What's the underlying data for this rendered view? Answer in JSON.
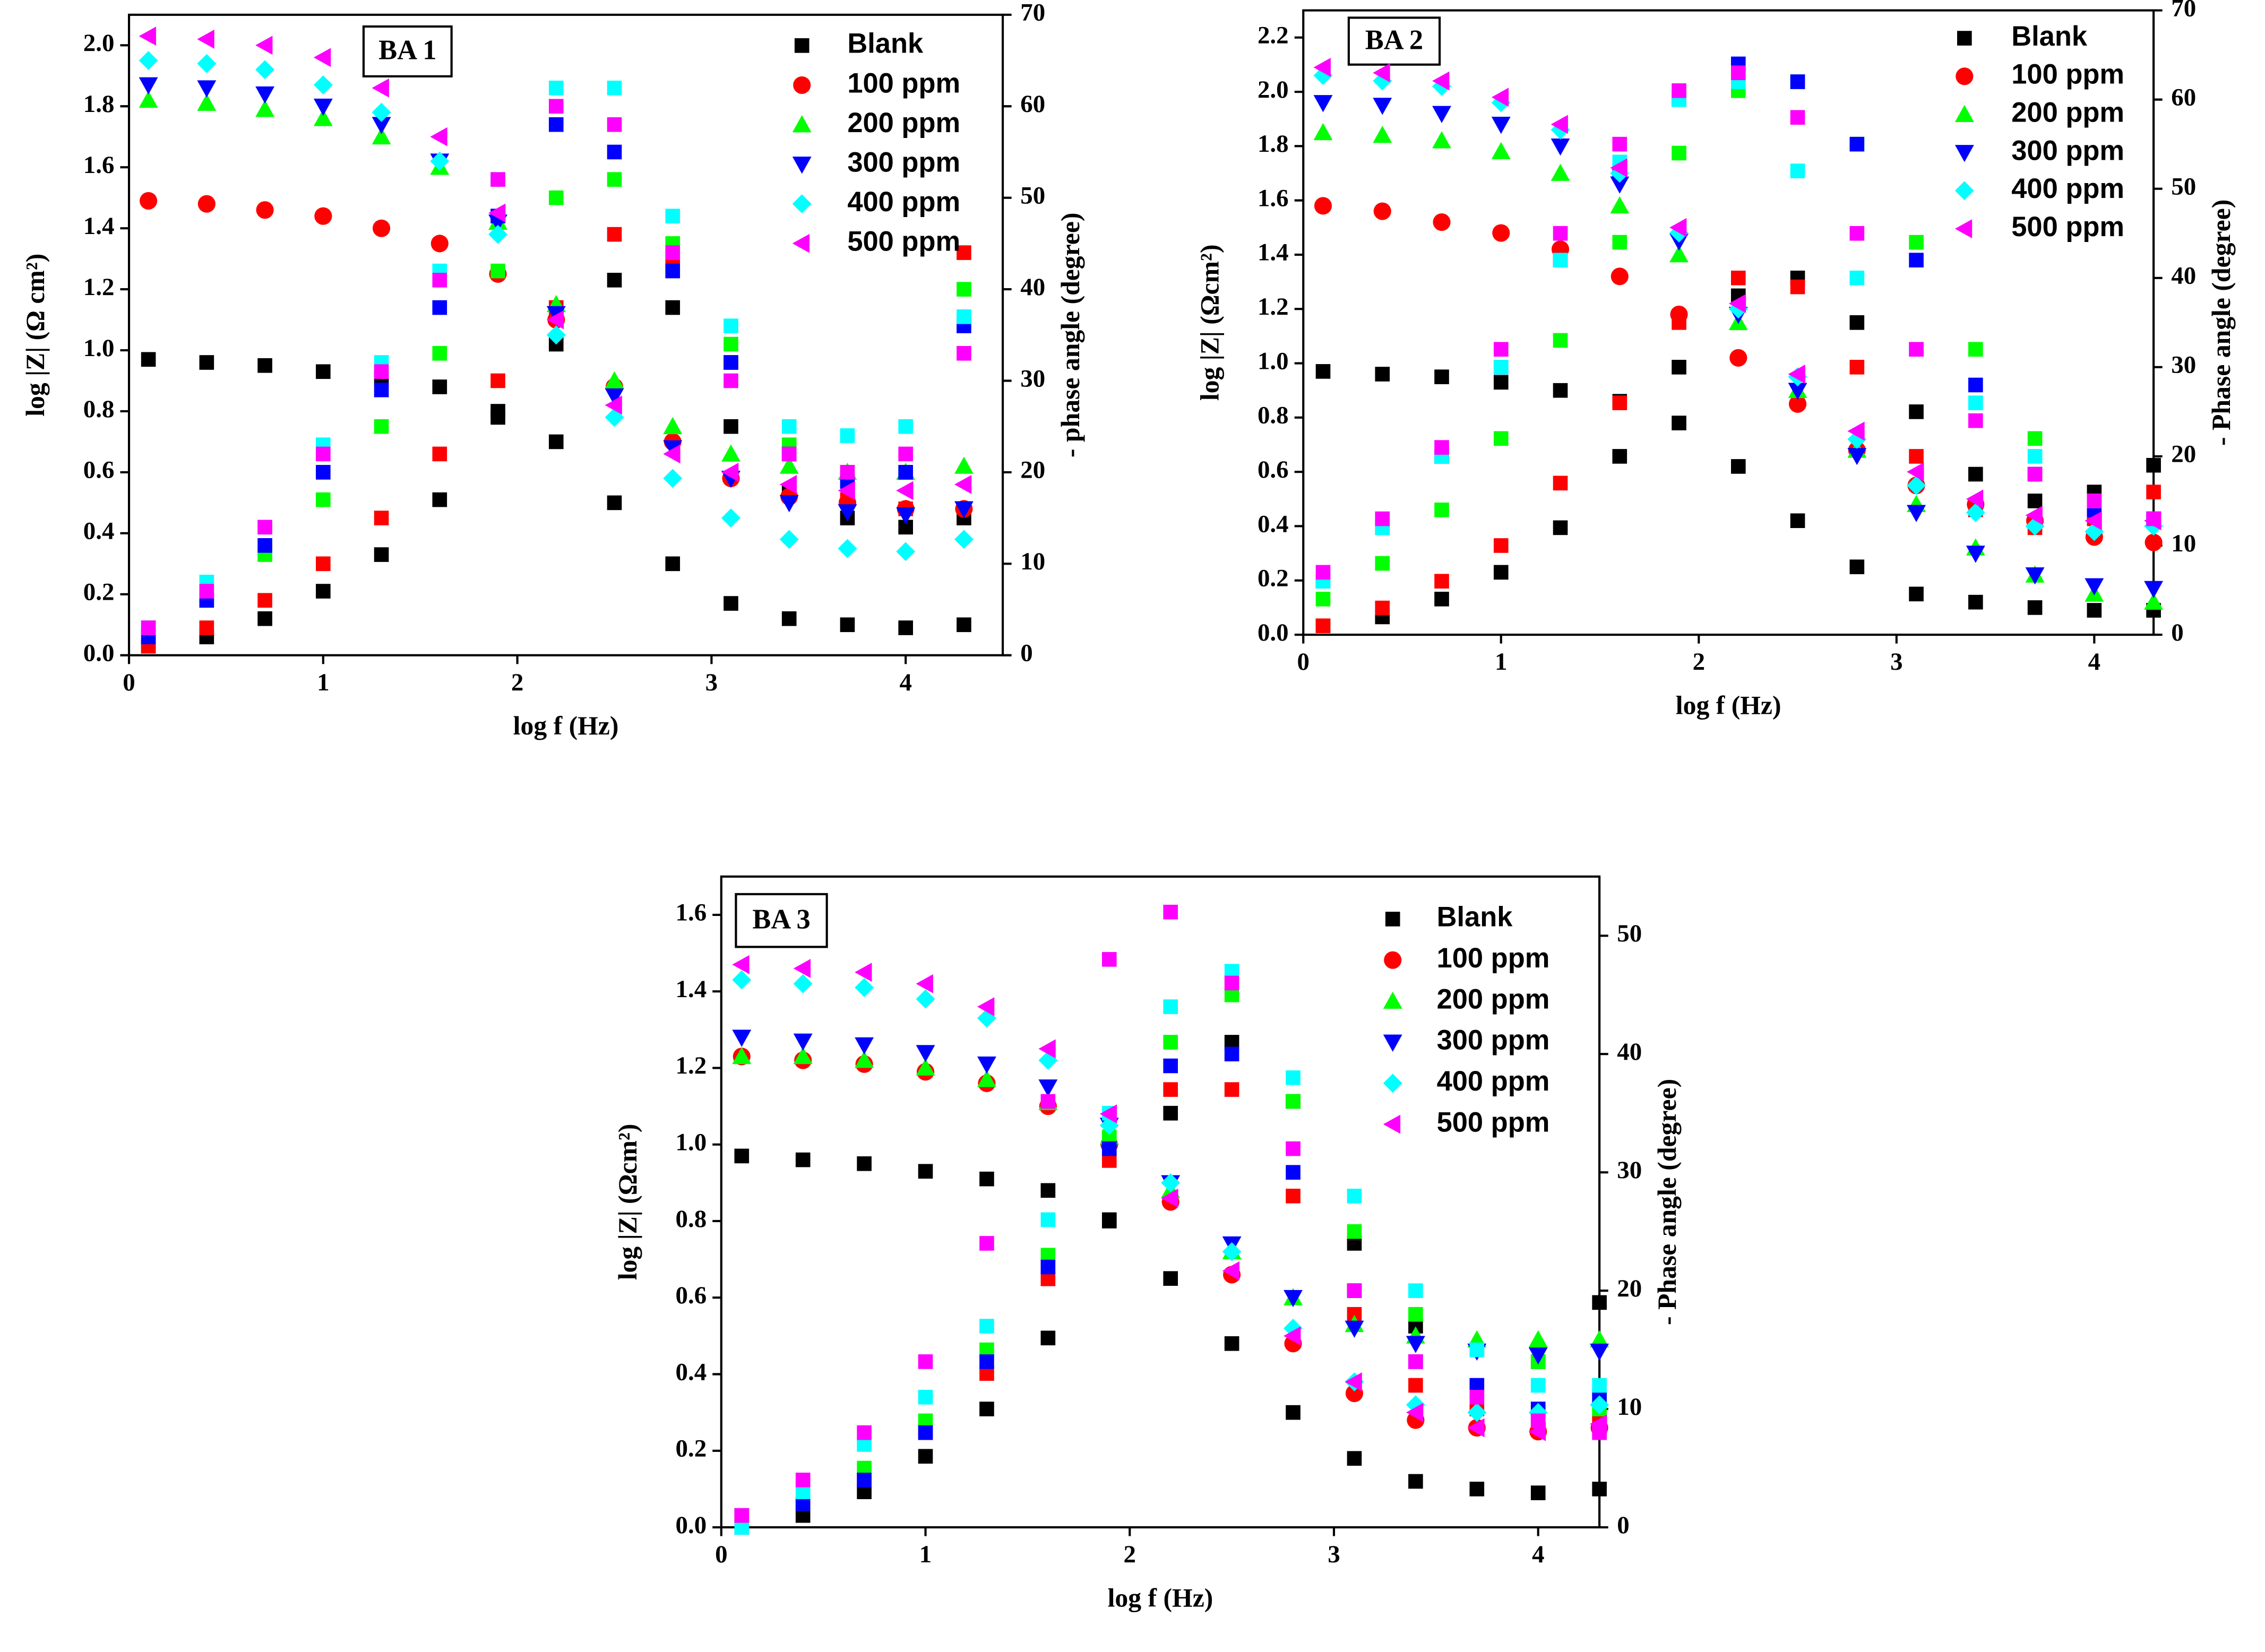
{
  "chart_data": [
    {
      "type": "scatter",
      "title": "BA 1",
      "xlabel": "log f (Hz)",
      "ylabel": "log |Z| (Ω cm²)",
      "y2label": "- phase angle (degree)",
      "xlim": [
        0,
        4.5
      ],
      "xticks": [
        0,
        1,
        2,
        3,
        4
      ],
      "ylim": [
        0,
        2.1
      ],
      "yticks": [
        {
          "value": 0,
          "label": "0.0"
        },
        0.2,
        0.4,
        0.6,
        0.8,
        {
          "value": 1,
          "label": "1.0"
        },
        1.2,
        1.4,
        1.6,
        1.8,
        {
          "value": 2,
          "label": "2.0"
        }
      ],
      "y2lim": [
        0,
        70
      ],
      "y2ticks": [
        0,
        10,
        20,
        30,
        40,
        50,
        60,
        70
      ],
      "x": [
        0.1,
        0.4,
        0.7,
        1.0,
        1.3,
        1.6,
        1.9,
        2.2,
        2.5,
        2.8,
        3.1,
        3.4,
        3.7,
        4.0,
        4.3
      ],
      "series": [
        {
          "name": "Blank",
          "color": "#000000",
          "marker": "square",
          "values": [
            0.97,
            0.96,
            0.95,
            0.93,
            0.91,
            0.88,
            0.8,
            0.7,
            0.5,
            0.3,
            0.17,
            0.12,
            0.1,
            0.09,
            0.1
          ],
          "phase": [
            1,
            2,
            4,
            7,
            11,
            17,
            26,
            34,
            41,
            38,
            25,
            18,
            15,
            14,
            15
          ]
        },
        {
          "name": "100 ppm",
          "color": "#ff0000",
          "marker": "circle",
          "values": [
            1.49,
            1.48,
            1.46,
            1.44,
            1.4,
            1.35,
            1.25,
            1.1,
            0.88,
            0.7,
            0.58,
            0.52,
            0.5,
            0.48,
            0.48
          ],
          "phase": [
            1,
            3,
            6,
            10,
            15,
            22,
            30,
            38,
            46,
            43,
            32,
            22,
            17,
            16,
            44
          ]
        },
        {
          "name": "200 ppm",
          "color": "#00ff00",
          "marker": "triangle-up",
          "values": [
            1.82,
            1.81,
            1.79,
            1.76,
            1.7,
            1.6,
            1.42,
            1.15,
            0.9,
            0.75,
            0.66,
            0.62,
            0.6,
            0.6,
            0.62
          ],
          "phase": [
            3,
            6,
            11,
            17,
            25,
            33,
            42,
            50,
            52,
            45,
            34,
            23,
            20,
            20,
            40
          ]
        },
        {
          "name": "300 ppm",
          "color": "#0000ff",
          "marker": "triangle-down",
          "values": [
            1.87,
            1.86,
            1.84,
            1.8,
            1.74,
            1.62,
            1.42,
            1.12,
            0.85,
            0.68,
            0.58,
            0.5,
            0.47,
            0.46,
            0.48
          ],
          "phase": [
            2,
            6,
            12,
            20,
            29,
            38,
            48,
            58,
            55,
            42,
            32,
            22,
            19,
            20,
            36
          ]
        },
        {
          "name": "400 ppm",
          "color": "#00ffff",
          "marker": "diamond",
          "values": [
            1.95,
            1.94,
            1.92,
            1.87,
            1.78,
            1.62,
            1.38,
            1.05,
            0.78,
            0.58,
            0.45,
            0.38,
            0.35,
            0.34,
            0.38
          ],
          "phase": [
            3,
            8,
            14,
            23,
            32,
            42,
            52,
            62,
            62,
            48,
            36,
            25,
            24,
            25,
            37
          ]
        },
        {
          "name": "500 ppm",
          "color": "#ff00ff",
          "marker": "triangle-left",
          "values": [
            2.03,
            2.02,
            2.0,
            1.96,
            1.86,
            1.7,
            1.45,
            1.1,
            0.82,
            0.66,
            0.6,
            0.56,
            0.54,
            0.54,
            0.56
          ],
          "phase": [
            3,
            7,
            14,
            22,
            31,
            41,
            52,
            60,
            58,
            44,
            30,
            22,
            20,
            22,
            33
          ]
        }
      ]
    },
    {
      "type": "scatter",
      "title": "BA 2",
      "xlabel": "log f (Hz)",
      "ylabel": "log |Z| (Ωcm²)",
      "y2label": "- Phase angle (degree)",
      "xlim": [
        0,
        4.3
      ],
      "xticks": [
        0,
        1,
        2,
        3,
        4
      ],
      "ylim": [
        0,
        2.3
      ],
      "yticks": [
        {
          "value": 0,
          "label": "0.0"
        },
        0.2,
        0.4,
        0.6,
        0.8,
        {
          "value": 1,
          "label": "1.0"
        },
        1.2,
        1.4,
        1.6,
        1.8,
        {
          "value": 2,
          "label": "2.0"
        },
        2.2
      ],
      "y2lim": [
        0,
        70
      ],
      "y2ticks": [
        0,
        10,
        20,
        30,
        40,
        50,
        60,
        70
      ],
      "x": [
        0.1,
        0.4,
        0.7,
        1.0,
        1.3,
        1.6,
        1.9,
        2.2,
        2.5,
        2.8,
        3.1,
        3.4,
        3.7,
        4.0,
        4.3
      ],
      "series": [
        {
          "name": "Blank",
          "color": "#000000",
          "marker": "square",
          "values": [
            0.97,
            0.96,
            0.95,
            0.93,
            0.9,
            0.86,
            0.78,
            0.62,
            0.42,
            0.25,
            0.15,
            0.12,
            0.1,
            0.09,
            0.09
          ],
          "phase": [
            1,
            2,
            4,
            7,
            12,
            20,
            30,
            38,
            40,
            35,
            25,
            18,
            15,
            16,
            19
          ]
        },
        {
          "name": "100 ppm",
          "color": "#ff0000",
          "marker": "circle",
          "values": [
            1.58,
            1.56,
            1.52,
            1.48,
            1.42,
            1.32,
            1.18,
            1.02,
            0.85,
            0.68,
            0.55,
            0.48,
            0.42,
            0.36,
            0.34
          ],
          "phase": [
            1,
            3,
            6,
            10,
            17,
            26,
            35,
            40,
            39,
            30,
            20,
            14,
            12,
            13,
            16
          ]
        },
        {
          "name": "200 ppm",
          "color": "#00ff00",
          "marker": "triangle-up",
          "values": [
            1.85,
            1.84,
            1.82,
            1.78,
            1.7,
            1.58,
            1.4,
            1.15,
            0.9,
            0.68,
            0.48,
            0.32,
            0.22,
            0.15,
            0.12
          ],
          "phase": [
            4,
            8,
            14,
            22,
            33,
            44,
            54,
            61,
            62,
            55,
            44,
            32,
            22,
            15,
            13
          ]
        },
        {
          "name": "300 ppm",
          "color": "#0000ff",
          "marker": "triangle-down",
          "values": [
            1.96,
            1.95,
            1.92,
            1.88,
            1.8,
            1.66,
            1.45,
            1.18,
            0.9,
            0.66,
            0.45,
            0.3,
            0.22,
            0.18,
            0.17
          ],
          "phase": [
            6,
            12,
            20,
            30,
            42,
            52,
            60,
            64,
            62,
            55,
            42,
            28,
            18,
            14,
            13
          ]
        },
        {
          "name": "400 ppm",
          "color": "#00ffff",
          "marker": "diamond",
          "values": [
            2.06,
            2.04,
            2.02,
            1.96,
            1.86,
            1.7,
            1.48,
            1.2,
            0.95,
            0.72,
            0.55,
            0.45,
            0.4,
            0.38,
            0.4
          ],
          "phase": [
            6,
            12,
            20,
            30,
            42,
            53,
            60,
            62,
            52,
            40,
            32,
            26,
            20,
            15,
            13
          ]
        },
        {
          "name": "500 ppm",
          "color": "#ff00ff",
          "marker": "triangle-left",
          "values": [
            2.09,
            2.07,
            2.04,
            1.98,
            1.88,
            1.72,
            1.5,
            1.22,
            0.96,
            0.75,
            0.6,
            0.5,
            0.44,
            0.42,
            0.42
          ],
          "phase": [
            7,
            13,
            21,
            32,
            45,
            55,
            61,
            63,
            58,
            45,
            32,
            24,
            18,
            15,
            13
          ]
        }
      ]
    },
    {
      "type": "scatter",
      "title": "BA 3",
      "xlabel": "log f (Hz)",
      "ylabel": "log |Z| (Ωcm²)",
      "y2label": "- Phase angle (degree)",
      "xlim": [
        0,
        4.3
      ],
      "xticks": [
        0,
        1,
        2,
        3,
        4
      ],
      "ylim": [
        0,
        1.7
      ],
      "yticks": [
        {
          "value": 0,
          "label": "0.0"
        },
        0.2,
        0.4,
        0.6,
        0.8,
        {
          "value": 1,
          "label": "1.0"
        },
        1.2,
        1.4,
        1.6
      ],
      "y2lim": [
        0,
        55
      ],
      "y2ticks": [
        0,
        10,
        20,
        30,
        40,
        50
      ],
      "x": [
        0.1,
        0.4,
        0.7,
        1.0,
        1.3,
        1.6,
        1.9,
        2.2,
        2.5,
        2.8,
        3.1,
        3.4,
        3.7,
        4.0,
        4.3
      ],
      "series": [
        {
          "name": "Blank",
          "color": "#000000",
          "marker": "square",
          "values": [
            0.97,
            0.96,
            0.95,
            0.93,
            0.91,
            0.88,
            0.8,
            0.65,
            0.48,
            0.3,
            0.18,
            0.12,
            0.1,
            0.09,
            0.1
          ],
          "phase": [
            1,
            1,
            3,
            6,
            10,
            16,
            26,
            35,
            41,
            36,
            24,
            17,
            15,
            14,
            19
          ]
        },
        {
          "name": "100 ppm",
          "color": "#ff0000",
          "marker": "circle",
          "values": [
            1.23,
            1.22,
            1.21,
            1.19,
            1.16,
            1.1,
            1.0,
            0.85,
            0.66,
            0.48,
            0.35,
            0.28,
            0.26,
            0.25,
            0.26
          ],
          "phase": [
            1,
            2,
            4,
            8,
            13,
            21,
            31,
            37,
            37,
            28,
            18,
            12,
            10,
            9,
            9
          ]
        },
        {
          "name": "200 ppm",
          "color": "#00ff00",
          "marker": "triangle-up",
          "values": [
            1.23,
            1.23,
            1.22,
            1.2,
            1.17,
            1.11,
            1.02,
            0.88,
            0.72,
            0.6,
            0.53,
            0.5,
            0.49,
            0.49,
            0.49
          ],
          "phase": [
            0,
            2,
            5,
            9,
            15,
            23,
            33,
            41,
            45,
            36,
            25,
            18,
            15,
            14,
            10
          ]
        },
        {
          "name": "300 ppm",
          "color": "#0000ff",
          "marker": "triangle-down",
          "values": [
            1.28,
            1.27,
            1.26,
            1.24,
            1.21,
            1.15,
            1.05,
            0.9,
            0.74,
            0.6,
            0.52,
            0.48,
            0.46,
            0.45,
            0.46
          ],
          "phase": [
            0,
            2,
            4,
            8,
            14,
            22,
            32,
            39,
            40,
            30,
            20,
            14,
            12,
            10,
            11
          ]
        },
        {
          "name": "400 ppm",
          "color": "#00ffff",
          "marker": "diamond",
          "values": [
            1.43,
            1.42,
            1.41,
            1.38,
            1.33,
            1.22,
            1.05,
            0.9,
            0.72,
            0.52,
            0.38,
            0.32,
            0.3,
            0.3,
            0.32
          ],
          "phase": [
            0,
            3,
            7,
            11,
            17,
            26,
            35,
            44,
            47,
            38,
            28,
            20,
            15,
            12,
            12
          ]
        },
        {
          "name": "500 ppm",
          "color": "#ff00ff",
          "marker": "triangle-left",
          "values": [
            1.47,
            1.46,
            1.45,
            1.42,
            1.36,
            1.25,
            1.08,
            0.86,
            0.67,
            0.5,
            0.38,
            0.3,
            0.26,
            0.25,
            0.27
          ],
          "phase": [
            1,
            4,
            8,
            14,
            24,
            36,
            48,
            52,
            46,
            32,
            20,
            14,
            11,
            9,
            8
          ]
        }
      ]
    }
  ]
}
